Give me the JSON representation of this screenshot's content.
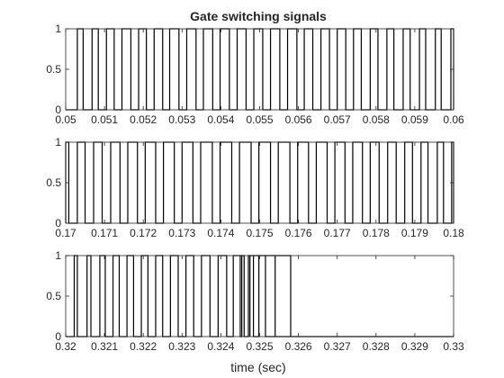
{
  "figure": {
    "title": "Gate switching signals",
    "xlabel": "time (sec)"
  },
  "chart_data": [
    {
      "type": "line",
      "step": true,
      "title": "Gate switching signals",
      "xlabel": "",
      "ylabel": "",
      "xlim": [
        0.05,
        0.06
      ],
      "ylim": [
        0,
        1
      ],
      "xticks": [
        "0.05",
        "0.051",
        "0.052",
        "0.053",
        "0.054",
        "0.055",
        "0.056",
        "0.057",
        "0.058",
        "0.059",
        "0.06"
      ],
      "yticks": [
        "0",
        "0.5",
        "1"
      ],
      "series": [
        {
          "color": "#000000",
          "high_intervals": [
            [
              0.0503,
              0.05045
            ],
            [
              0.05068,
              0.05084
            ],
            [
              0.05105,
              0.05125
            ],
            [
              0.05145,
              0.05168
            ],
            [
              0.05188,
              0.05208
            ],
            [
              0.05228,
              0.0525
            ],
            [
              0.05268,
              0.05292
            ],
            [
              0.05312,
              0.05336
            ],
            [
              0.05355,
              0.05379
            ],
            [
              0.05398,
              0.05422
            ],
            [
              0.05442,
              0.05465
            ],
            [
              0.05485,
              0.05508
            ],
            [
              0.05528,
              0.05552
            ],
            [
              0.05572,
              0.05596
            ],
            [
              0.05615,
              0.05637
            ],
            [
              0.05658,
              0.0568
            ],
            [
              0.057,
              0.05722
            ],
            [
              0.05742,
              0.05762
            ],
            [
              0.05785,
              0.05805
            ],
            [
              0.05828,
              0.05846
            ],
            [
              0.0587,
              0.05888
            ],
            [
              0.05912,
              0.05928
            ],
            [
              0.05953,
              0.05968
            ],
            [
              0.05993,
              0.06
            ]
          ]
        }
      ]
    },
    {
      "type": "line",
      "step": true,
      "title": "",
      "xlabel": "",
      "ylabel": "",
      "xlim": [
        0.17,
        0.18
      ],
      "ylim": [
        0,
        1
      ],
      "xticks": [
        "0.17",
        "0.171",
        "0.172",
        "0.173",
        "0.174",
        "0.175",
        "0.176",
        "0.177",
        "0.178",
        "0.179",
        "0.18"
      ],
      "yticks": [
        "0",
        "0.5",
        "1"
      ],
      "series": [
        {
          "color": "#000000",
          "high_intervals": [
            [
              0.17,
              0.17008
            ],
            [
              0.1703,
              0.1705
            ],
            [
              0.17072,
              0.17094
            ],
            [
              0.17116,
              0.1714
            ],
            [
              0.1716,
              0.17185
            ],
            [
              0.17205,
              0.17232
            ],
            [
              0.17252,
              0.1728
            ],
            [
              0.173,
              0.17328
            ],
            [
              0.17348,
              0.17378
            ],
            [
              0.17398,
              0.17428
            ],
            [
              0.17448,
              0.17478
            ],
            [
              0.17498,
              0.17528
            ],
            [
              0.17548,
              0.17578
            ],
            [
              0.17598,
              0.17626
            ],
            [
              0.17646,
              0.17674
            ],
            [
              0.17694,
              0.1772
            ],
            [
              0.1774,
              0.17765
            ],
            [
              0.17785,
              0.17808
            ],
            [
              0.1783,
              0.17852
            ],
            [
              0.17874,
              0.17894
            ],
            [
              0.17916,
              0.17934
            ],
            [
              0.17958,
              0.17974
            ],
            [
              0.17995,
              0.18
            ]
          ]
        }
      ]
    },
    {
      "type": "line",
      "step": true,
      "title": "",
      "xlabel": "time (sec)",
      "ylabel": "",
      "xlim": [
        0.32,
        0.33
      ],
      "ylim": [
        0,
        1
      ],
      "xticks": [
        "0.32",
        "0.321",
        "0.322",
        "0.323",
        "0.324",
        "0.325",
        "0.326",
        "0.327",
        "0.328",
        "0.329",
        "0.33"
      ],
      "yticks": [
        "0",
        "0.5",
        "1"
      ],
      "series": [
        {
          "color": "#000000",
          "high_intervals": [
            [
              0.32022,
              0.3203
            ],
            [
              0.32055,
              0.32065
            ],
            [
              0.32088,
              0.32102
            ],
            [
              0.32122,
              0.32138
            ],
            [
              0.32158,
              0.32175
            ],
            [
              0.32195,
              0.32212
            ],
            [
              0.32232,
              0.3225
            ],
            [
              0.3227,
              0.3229
            ],
            [
              0.3231,
              0.3233
            ],
            [
              0.3235,
              0.32372
            ],
            [
              0.32393,
              0.32415
            ],
            [
              0.32432,
              0.32454
            ],
            [
              0.32475,
              0.32498
            ],
            [
              0.32515,
              0.3254
            ],
            [
              0.3245,
              0.3246
            ],
            [
              0.32471,
              0.32475
            ],
            [
              0.3248,
              0.3248
            ],
            [
              0.32484,
              0.3258
            ],
            [
              0.3259,
              0.3259
            ],
            [
              0.3259,
              0.3259
            ],
            [
              0.3259,
              0.3259
            ],
            [
              0.3259,
              0.3259
            ],
            [
              0.3259,
              0.3259
            ],
            [
              0.3259,
              0.3259
            ]
          ]
        }
      ]
    }
  ]
}
